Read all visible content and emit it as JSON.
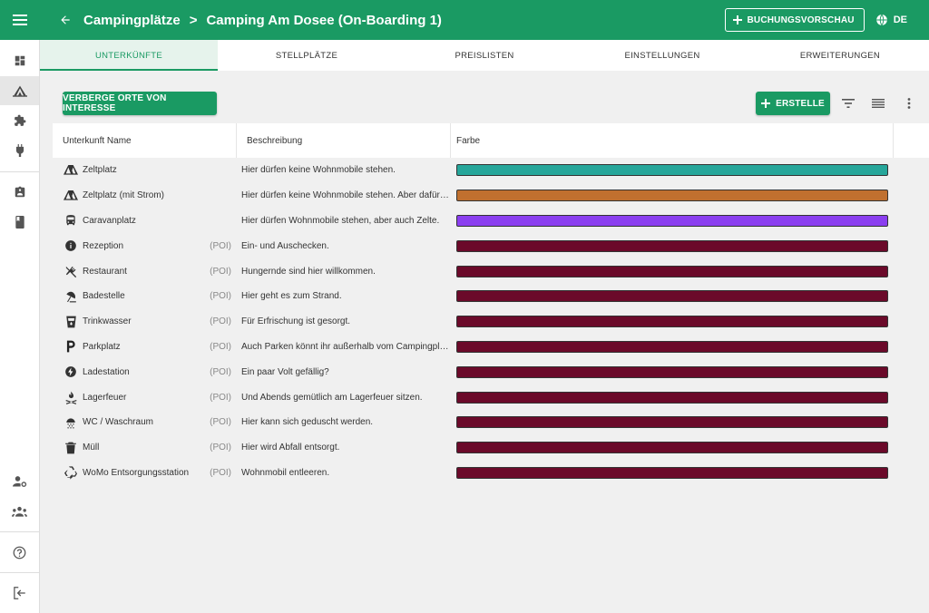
{
  "appbar": {
    "crumb_root": "Campingplätze",
    "crumb_current": "Camping Am Dosee (On-Boarding 1)",
    "preview_label": "BUCHUNGSVORSCHAU",
    "lang_label": "DE",
    "bg_color": "#1a9a63"
  },
  "tabs": [
    {
      "label": "UNTERKÜNFTE",
      "active": true
    },
    {
      "label": "STELLPLÄTZE",
      "active": false
    },
    {
      "label": "PREISLISTEN",
      "active": false
    },
    {
      "label": "EINSTELLUNGEN",
      "active": false
    },
    {
      "label": "ERWEITERUNGEN",
      "active": false
    }
  ],
  "toolbar": {
    "hide_poi_label": "VERBERGE ORTE VON INTERESSE",
    "create_label": "ERSTELLE"
  },
  "table": {
    "headers": {
      "name": "Unterkunft Name",
      "description": "Beschreibung",
      "color": "Farbe"
    },
    "rows": [
      {
        "icon": "tent-icon",
        "name": "Zeltplatz",
        "poi": "",
        "description": "Hier dürfen keine Wohnmobile stehen.",
        "color": "#26a69a"
      },
      {
        "icon": "tent-icon",
        "name": "Zeltplatz (mit Strom)",
        "poi": "",
        "description": "Hier dürfen keine Wohnmobile stehen. Aber dafür gibt es Strom.",
        "color": "#c0702f"
      },
      {
        "icon": "bus-icon",
        "name": "Caravanplatz",
        "poi": "",
        "description": "Hier dürfen Wohnmobile stehen, aber auch Zelte.",
        "color": "#8b3ff0"
      },
      {
        "icon": "info-icon",
        "name": "Rezeption",
        "poi": "(POI)",
        "description": "Ein- und Auschecken.",
        "color": "#6b0a2a"
      },
      {
        "icon": "restaurant-icon",
        "name": "Restaurant",
        "poi": "(POI)",
        "description": "Hungernde sind hier willkommen.",
        "color": "#6b0a2a"
      },
      {
        "icon": "beach-umbrella-icon",
        "name": "Badestelle",
        "poi": "(POI)",
        "description": "Hier geht es zum Strand.",
        "color": "#6b0a2a"
      },
      {
        "icon": "water-cup-icon",
        "name": "Trinkwasser",
        "poi": "(POI)",
        "description": "Für Erfrischung ist gesorgt.",
        "color": "#6b0a2a"
      },
      {
        "icon": "parking-icon",
        "name": "Parkplatz",
        "poi": "(POI)",
        "description": "Auch Parken könnt ihr außerhalb vom Campingplatz.",
        "color": "#6b0a2a"
      },
      {
        "icon": "bolt-icon",
        "name": "Ladestation",
        "poi": "(POI)",
        "description": "Ein paar Volt gefällig?",
        "color": "#6b0a2a"
      },
      {
        "icon": "campfire-icon",
        "name": "Lagerfeuer",
        "poi": "(POI)",
        "description": "Und Abends gemütlich am Lagerfeuer sitzen.",
        "color": "#6b0a2a"
      },
      {
        "icon": "shower-icon",
        "name": "WC / Waschraum",
        "poi": "(POI)",
        "description": "Hier kann sich geduscht werden.",
        "color": "#6b0a2a"
      },
      {
        "icon": "trash-icon",
        "name": "Müll",
        "poi": "(POI)",
        "description": "Hier wird Abfall entsorgt.",
        "color": "#6b0a2a"
      },
      {
        "icon": "recycle-icon",
        "name": "WoMo Entsorgungsstation",
        "poi": "(POI)",
        "description": "Wohnmobil entleeren.",
        "color": "#6b0a2a"
      }
    ]
  }
}
